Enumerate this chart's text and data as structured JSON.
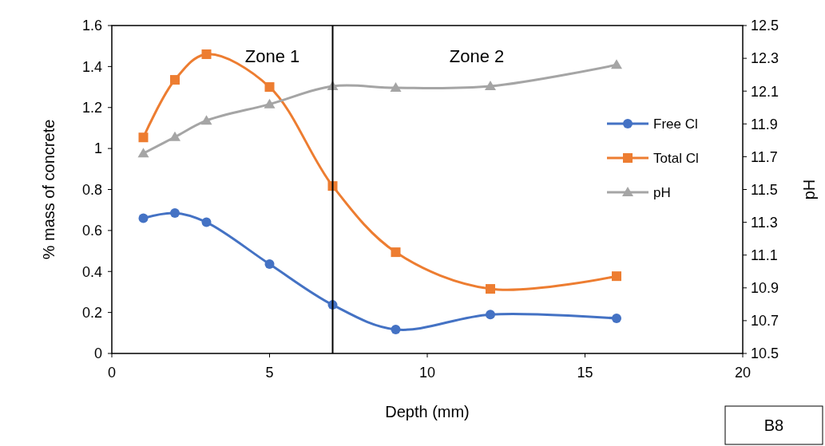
{
  "chart_data": {
    "type": "line",
    "xlabel": "Depth (mm)",
    "ylabel": "% mass of concrete",
    "y2label": "pH",
    "xlim": [
      0,
      20
    ],
    "xticks": [
      0,
      5,
      10,
      15,
      20
    ],
    "ylim": [
      0,
      1.6
    ],
    "yticks": [
      0,
      0.2,
      0.4,
      0.6,
      0.8,
      1,
      1.2,
      1.4,
      1.6
    ],
    "y2lim": [
      10.5,
      12.5
    ],
    "y2ticks": [
      10.5,
      10.7,
      10.9,
      11.1,
      11.3,
      11.5,
      11.7,
      11.9,
      12.1,
      12.3,
      12.5
    ],
    "x": [
      1,
      2,
      3,
      5,
      7,
      9,
      12,
      16
    ],
    "legend": "right",
    "grid": false,
    "series": [
      {
        "name": "Free Cl",
        "color": "#4472c4",
        "marker": "circle",
        "values": [
          0.66,
          0.685,
          0.64,
          0.436,
          0.237,
          0.117,
          0.19,
          0.171
        ]
      },
      {
        "name": "Total Cl",
        "color": "#ed7d31",
        "marker": "square",
        "values": [
          1.054,
          1.335,
          1.46,
          1.3,
          0.817,
          0.494,
          0.315,
          0.377
        ]
      },
      {
        "name": "pH",
        "color": "#a5a5a5",
        "marker": "triangle",
        "axis": "y2",
        "values": [
          11.72,
          11.82,
          11.92,
          12.02,
          12.13,
          12.12,
          12.13,
          12.26
        ]
      }
    ],
    "ref_lines": [
      {
        "axis": "x",
        "value": 7,
        "color": "#000000"
      }
    ],
    "annotations": [
      "Zone 1",
      "Zone 2",
      "B8"
    ]
  }
}
